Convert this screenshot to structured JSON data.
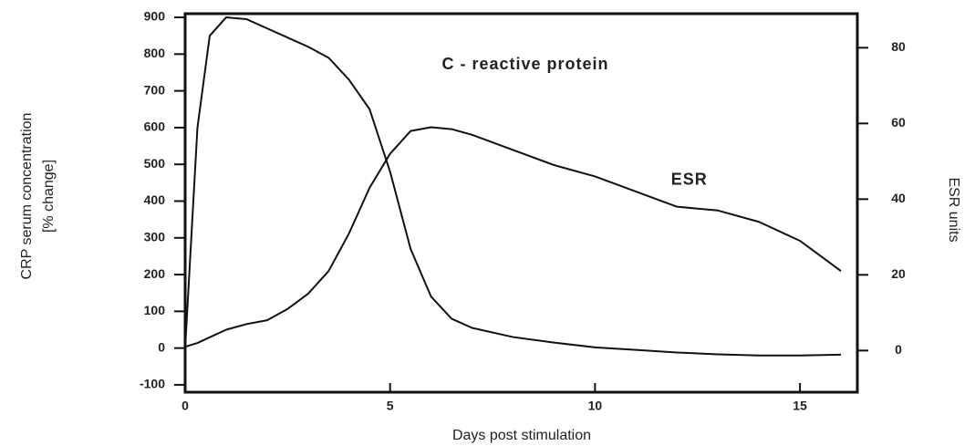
{
  "chart_data": {
    "type": "line",
    "xlabel": "Days post stimulation",
    "ylabel": [
      "CRP serum concentration",
      "[% change]"
    ],
    "y2label": "ESR units",
    "annotations": [
      {
        "text": "C - reactive protein",
        "x": 8.3,
        "y": 770
      },
      {
        "text": "ESR",
        "x": 12.3,
        "y": 45,
        "axis": "y2"
      }
    ],
    "x": [
      0,
      0.3,
      0.6,
      1,
      1.5,
      2,
      2.5,
      3,
      3.5,
      4,
      4.5,
      5,
      5.5,
      6,
      6.5,
      7,
      8,
      9,
      10,
      11,
      12,
      13,
      14,
      15,
      16
    ],
    "series": [
      {
        "name": "C - reactive protein",
        "color": "#111111",
        "axis": "y",
        "values": [
          0,
          600,
          850,
          900,
          895,
          870,
          845,
          820,
          790,
          730,
          650,
          480,
          270,
          140,
          80,
          55,
          30,
          15,
          2,
          -5,
          -12,
          -17,
          -20,
          -20,
          -18
        ]
      },
      {
        "name": "ESR",
        "color": "#111111",
        "axis": "y2",
        "values": [
          1,
          2,
          3.5,
          5.5,
          7,
          8,
          11,
          15,
          21,
          31,
          43,
          52,
          58,
          59,
          58.5,
          57,
          53,
          49,
          46,
          42,
          38,
          37,
          34,
          29,
          21
        ]
      }
    ],
    "xlim": [
      0,
      16.4
    ],
    "xticks": [
      0,
      5,
      10,
      15
    ],
    "ylim": [
      -120,
      910
    ],
    "yticks": [
      -100,
      0,
      100,
      200,
      300,
      400,
      500,
      600,
      700,
      800,
      900
    ],
    "y2lim": [
      -11,
      89
    ],
    "y2ticks": [
      0,
      20,
      40,
      60,
      80
    ],
    "grid": false
  }
}
